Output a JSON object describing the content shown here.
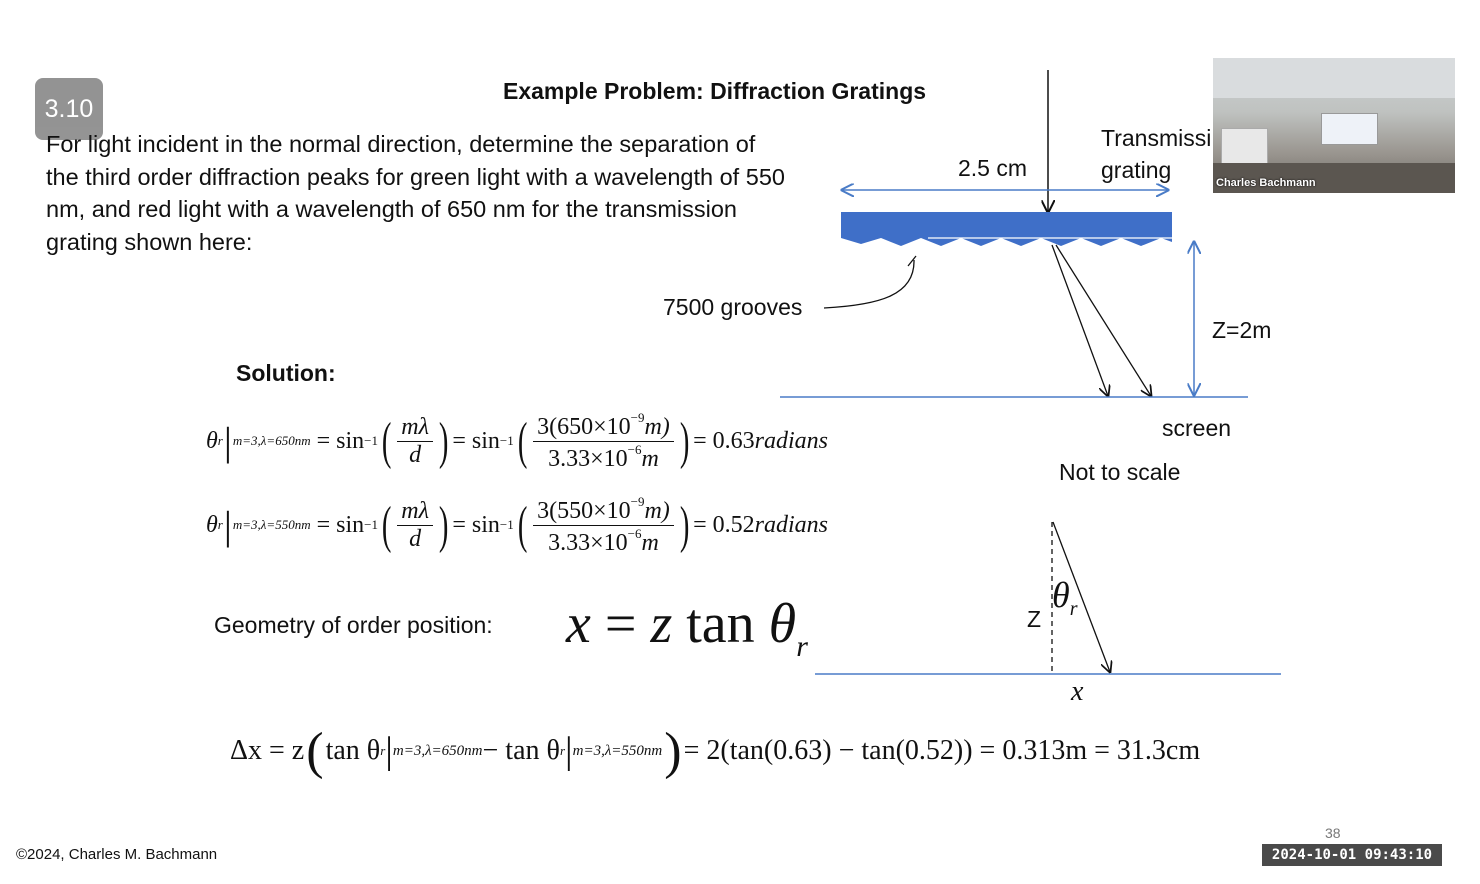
{
  "slide_badge": "3.10",
  "title": "Example Problem: Diffraction Gratings",
  "problem_text": "For light incident in the normal direction, determine the separation of the third order diffraction peaks for green light with a wavelength of 550 nm, and red light with a wavelength of 650 nm for the transmission grating shown here:",
  "diagram": {
    "width_label": "2.5 cm",
    "grating_label_line1": "Transmissi",
    "grating_label_line2": "grating",
    "grooves_label": "7500 grooves",
    "distance_label": "Z=2m",
    "screen_label": "screen",
    "scale_note": "Not to scale",
    "z_label": "Z",
    "theta_label": "θ",
    "theta_sub": "r",
    "x_label": "x",
    "grating_color": "#3f6fc8"
  },
  "solution_label": "Solution:",
  "eq1": {
    "lhs": "θ",
    "lhs_sub": "r",
    "cond": "m=3,λ=650nm",
    "sin": "= sin",
    "inv": "−1",
    "num1": "mλ",
    "den1": "d",
    "num2": "3(650×10",
    "num2_exp": "−9",
    "num2_unit": "m)",
    "den2": "3.33×10",
    "den2_exp": "−6",
    "den2_unit": "m",
    "result": "= 0.63",
    "result_unit": "radians"
  },
  "eq2": {
    "lhs": "θ",
    "lhs_sub": "r",
    "cond": "m=3,λ=550nm",
    "sin": "= sin",
    "inv": "−1",
    "num1": "mλ",
    "den1": "d",
    "num2": "3(550×10",
    "num2_exp": "−9",
    "num2_unit": "m)",
    "den2": "3.33×10",
    "den2_exp": "−6",
    "den2_unit": "m",
    "result": "= 0.52",
    "result_unit": "radians"
  },
  "geometry_label": "Geometry of order position:",
  "geometry_eq": {
    "lhs": "x",
    "mid": " = ",
    "z": "z",
    "tan": " tan",
    "theta": "θ",
    "sub": "r"
  },
  "final_eq": {
    "part1": "Δx = z",
    "tan1": "tan θ",
    "sub1": "r",
    "cond1": "m=3,λ=650nm",
    "minus": " − tan θ",
    "sub2": "r",
    "cond2": "m=3,λ=550nm",
    "rest": "= 2(tan(0.63) − tan(0.52)) = 0.313m = 31.3cm"
  },
  "footer": "©2024, Charles M. Bachmann",
  "page_number": "38",
  "timestamp": "2024-10-01  09:43:10",
  "video": {
    "presenter_name": "Charles Bachmann"
  }
}
